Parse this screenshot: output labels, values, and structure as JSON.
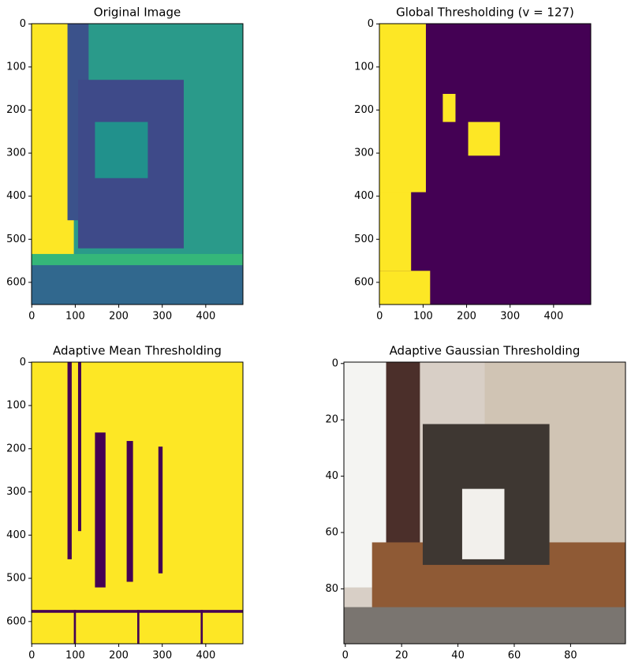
{
  "chart_data": [
    {
      "type": "image",
      "title": "Original Image",
      "xlim": [
        -0.5,
        485.5
      ],
      "ylim": [
        651.5,
        -0.5
      ],
      "xticks": [
        0,
        100,
        200,
        300,
        400
      ],
      "yticks": [
        0,
        100,
        200,
        300,
        400,
        500,
        600
      ]
    },
    {
      "type": "image",
      "title": "Global Thresholding (v = 127)",
      "xlim": [
        -0.5,
        485.5
      ],
      "ylim": [
        651.5,
        -0.5
      ],
      "xticks": [
        0,
        100,
        200,
        300,
        400
      ],
      "yticks": [
        0,
        100,
        200,
        300,
        400,
        500,
        600
      ]
    },
    {
      "type": "image",
      "title": "Adaptive Mean Thresholding",
      "xlim": [
        -0.5,
        485.5
      ],
      "ylim": [
        651.5,
        -0.5
      ],
      "xticks": [
        0,
        100,
        200,
        300,
        400
      ],
      "yticks": [
        0,
        100,
        200,
        300,
        400,
        500,
        600
      ]
    },
    {
      "type": "image",
      "title": "Adaptive Gaussian Thresholding",
      "xlim": [
        -0.5,
        99.5
      ],
      "ylim": [
        99.5,
        -0.5
      ],
      "xticks": [
        0,
        20,
        40,
        60,
        80
      ],
      "yticks": [
        0,
        20,
        40,
        60,
        80
      ]
    }
  ]
}
